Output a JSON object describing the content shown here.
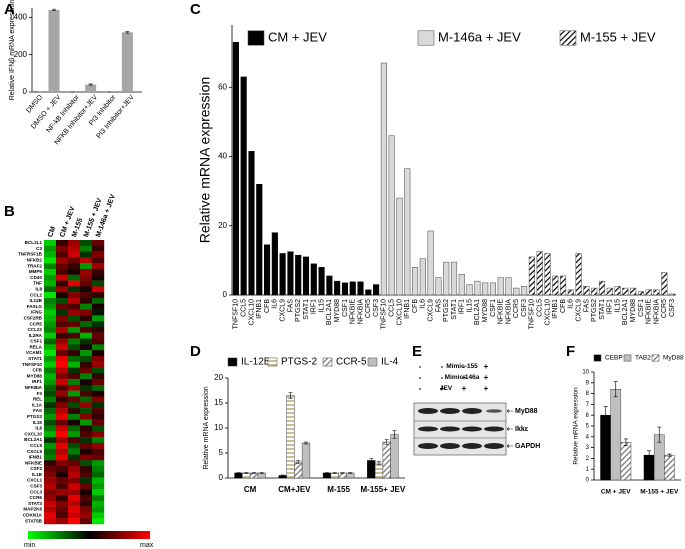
{
  "chart_data": [
    {
      "panel": "A",
      "type": "bar",
      "ylabel": "Relative IFNβ mRNA expression",
      "categories": [
        "DMSO",
        "DMSO + JEV",
        "NF-kB Inhibitor",
        "NFKB Inhibitor+JEV",
        "PI3 Inhibitor",
        "PI3 Inhibitor+JEV"
      ],
      "values": [
        1,
        440,
        1,
        40,
        1,
        320
      ],
      "errors": [
        0,
        4,
        0,
        3,
        0,
        4
      ],
      "color": "#a6a6a6",
      "ylim": [
        0,
        450
      ],
      "yticks": [
        0,
        200,
        400
      ]
    },
    {
      "panel": "B",
      "type": "heatmap",
      "columns": [
        "CM",
        "CM + JEV",
        "M-155",
        "M-155 + JEV",
        "M-146a + JEV"
      ],
      "rows": [
        "BCL2L1",
        "C3",
        "TNFRSF1B",
        "NFKB2",
        "TRAF2",
        "MMP9",
        "CD40",
        "TNF",
        "IL8",
        "CCL2",
        "IL12B",
        "FASLG",
        "IFNG",
        "CSF2RB",
        "CCR5",
        "CCL22",
        "IL2RA",
        "CSF1",
        "RELA",
        "VCAM1",
        "STAT1",
        "TNFSF10",
        "CFB",
        "MYD88",
        "IRF1",
        "NFKBIA",
        "F3",
        "REL",
        "IL1A",
        "FAS",
        "PTGS2",
        "IL15",
        "IL6",
        "CXCL10",
        "BCL2A1",
        "CCL5",
        "CXCL9",
        "IFNB1",
        "NFKBIE",
        "CSF2",
        "IL1B",
        "CXCL1",
        "CSF3",
        "CCL3",
        "CCR6",
        "STAT3",
        "MAP2K6",
        "CDKN1A",
        "STAT5B"
      ],
      "values": [
        [
          -0.8,
          0.2,
          0.6,
          -0.3,
          0.4
        ],
        [
          -0.6,
          0.5,
          0.7,
          -0.5,
          0.2
        ],
        [
          -0.7,
          0.3,
          0.8,
          -0.2,
          0.5
        ],
        [
          -0.9,
          0.6,
          0.4,
          0.7,
          0.3
        ],
        [
          -0.5,
          0.4,
          0.2,
          -0.6,
          0.6
        ],
        [
          -0.8,
          0.3,
          0.1,
          0.6,
          0.2
        ],
        [
          -0.6,
          0.8,
          -0.4,
          0.5,
          0.1
        ],
        [
          -0.7,
          0.2,
          0.9,
          0.4,
          -0.3
        ],
        [
          -0.4,
          0.6,
          -0.2,
          0.1,
          0.8
        ],
        [
          -0.9,
          0.1,
          0.5,
          0.3,
          0.2
        ],
        [
          -0.5,
          -0.3,
          0.7,
          0.2,
          -0.4
        ],
        [
          -0.6,
          0.4,
          0.3,
          -0.5,
          0.1
        ],
        [
          -0.8,
          -0.2,
          0.6,
          0.5,
          -0.1
        ],
        [
          -0.7,
          0.5,
          -0.3,
          0.2,
          -0.6
        ],
        [
          -0.6,
          0.3,
          0.4,
          -0.4,
          -0.2
        ],
        [
          -0.5,
          0.7,
          -0.6,
          0.3,
          0.2
        ],
        [
          -0.8,
          0.2,
          0.3,
          -0.7,
          0.4
        ],
        [
          -0.4,
          0.6,
          -0.5,
          -0.2,
          0.3
        ],
        [
          -0.7,
          0.8,
          -0.3,
          0.1,
          -0.5
        ],
        [
          -0.9,
          0.4,
          0.2,
          -0.6,
          0.1
        ],
        [
          -0.6,
          0.9,
          -0.4,
          -0.3,
          0.5
        ],
        [
          -0.8,
          1,
          -0.7,
          0.2,
          0.6
        ],
        [
          -0.5,
          0.7,
          -0.2,
          0.4,
          -0.3
        ],
        [
          -0.7,
          0.5,
          0.3,
          -0.5,
          0.2
        ],
        [
          -0.6,
          0.8,
          -0.5,
          0.1,
          0.4
        ],
        [
          -0.4,
          0.3,
          0.6,
          -0.2,
          -0.4
        ],
        [
          -0.3,
          0.6,
          -0.6,
          0.3,
          0.1
        ],
        [
          -0.5,
          0.2,
          0.4,
          -0.4,
          0.5
        ],
        [
          -0.2,
          0.5,
          -0.3,
          0.6,
          -0.2
        ],
        [
          -0.4,
          0.7,
          0.2,
          -0.3,
          0.3
        ],
        [
          -0.6,
          0.9,
          -0.5,
          0.5,
          0.2
        ],
        [
          -0.3,
          0.4,
          0.1,
          -0.6,
          0.4
        ],
        [
          -0.5,
          0.8,
          -0.4,
          0.2,
          -0.3
        ],
        [
          -0.7,
          1,
          -0.6,
          0.3,
          0.5
        ],
        [
          -0.2,
          0.6,
          0.3,
          -0.2,
          -0.5
        ],
        [
          -0.6,
          0.9,
          -0.3,
          0.4,
          0.6
        ],
        [
          -0.4,
          0.7,
          -0.5,
          0.1,
          0.3
        ],
        [
          -0.5,
          0.9,
          -0.2,
          0.5,
          0.4
        ],
        [
          0.2,
          0.5,
          0.4,
          -0.3,
          -0.6
        ],
        [
          0.4,
          0.3,
          0.6,
          0.2,
          -0.5
        ],
        [
          0.5,
          0.1,
          0.7,
          0.3,
          -0.4
        ],
        [
          0.6,
          0.4,
          0.5,
          -0.2,
          -0.7
        ],
        [
          0.7,
          0.3,
          0.8,
          0.4,
          -0.6
        ],
        [
          0.5,
          0.6,
          0.6,
          0.1,
          -0.8
        ],
        [
          0.6,
          0.2,
          0.9,
          0.3,
          -0.5
        ],
        [
          0.8,
          0.5,
          0.7,
          0.2,
          -0.7
        ],
        [
          0.7,
          0.4,
          0.9,
          0.5,
          -0.6
        ],
        [
          0.9,
          0.3,
          0.8,
          0.6,
          -0.8
        ],
        [
          0.8,
          0.6,
          1,
          0.4,
          -0.9
        ]
      ],
      "vlim": [
        -1,
        1
      ],
      "colors": [
        "#00ff00",
        "#000000",
        "#ff0000"
      ],
      "colorbar_labels": [
        "min",
        "max"
      ]
    },
    {
      "panel": "C",
      "type": "grouped_bar",
      "grouping": "by_series",
      "ylabel": "Relative mRNA expression",
      "categories": [
        "TNFSF10",
        "CCL5",
        "CXCL10",
        "IFNB1",
        "CFB",
        "IL6",
        "CXCL9",
        "FAS",
        "PTGS2",
        "STAT1",
        "IRF1",
        "IL15",
        "BCL2A1",
        "MYD88",
        "CSF1",
        "NFKBIE",
        "NFKBIA",
        "CCR5",
        "CSF3"
      ],
      "series": [
        {
          "name": "CM + JEV",
          "color": "#000000",
          "values": [
            73,
            63,
            41.5,
            32,
            14.5,
            18,
            12,
            12.5,
            11.5,
            11,
            9,
            8,
            5.5,
            4,
            3.5,
            3.8,
            3.8,
            1.5,
            3
          ]
        },
        {
          "name": "M-146a + JEV",
          "color": "#d9d9d9",
          "values": [
            67,
            46,
            28,
            36.5,
            8,
            10.5,
            18.5,
            5,
            9.5,
            9.5,
            6,
            3,
            4,
            3.5,
            3.5,
            5,
            5,
            2,
            2.5
          ]
        },
        {
          "name": "M-155 + JEV",
          "color": "#000000",
          "pattern": "diagonal",
          "values": [
            11,
            12.5,
            12,
            5.5,
            5.5,
            1.5,
            12,
            2.5,
            2,
            4,
            2,
            2.5,
            2,
            2,
            1,
            1.5,
            1.5,
            6.5,
            0.3
          ]
        }
      ],
      "ylim": [
        0,
        78
      ],
      "yticks": [
        0,
        20,
        40,
        60
      ]
    },
    {
      "panel": "D",
      "type": "grouped_bar",
      "grouping": "by_category",
      "ylabel": "Relative mRNA expression",
      "categories": [
        "CM",
        "CM+JEV",
        "M-155",
        "M-155+ JEV"
      ],
      "series": [
        {
          "name": "IL-12B",
          "color": "#000000",
          "values": [
            1,
            0.5,
            1,
            3.5
          ],
          "errors": [
            0.1,
            0.1,
            0.1,
            0.4
          ]
        },
        {
          "name": "PTGS-2",
          "color": "#c8bf95",
          "pattern": "horizontal",
          "values": [
            1,
            16.5,
            1,
            3
          ],
          "errors": [
            0.1,
            0.6,
            0.1,
            0.3
          ]
        },
        {
          "name": "CCR-5",
          "color": "#707070",
          "pattern": "diagonal",
          "values": [
            1,
            3.2,
            1,
            7.2
          ],
          "errors": [
            0.1,
            0.3,
            0.1,
            0.5
          ]
        },
        {
          "name": "IL-4",
          "color": "#bfbfbf",
          "values": [
            1,
            7,
            1,
            8.7
          ],
          "errors": [
            0.1,
            0.2,
            0.1,
            0.8
          ]
        }
      ],
      "ylim": [
        0,
        20
      ],
      "yticks": [
        0,
        5,
        10,
        15,
        20
      ]
    },
    {
      "panel": "F",
      "type": "grouped_bar",
      "grouping": "by_category",
      "ylabel": "Relative mRNA expression",
      "categories": [
        "CM + JEV",
        "M-155 + JEV"
      ],
      "series": [
        {
          "name": "CEBP",
          "color": "#000000",
          "values": [
            6,
            2.3
          ],
          "errors": [
            0.8,
            0.4
          ]
        },
        {
          "name": "TAB2",
          "color": "#bfbfbf",
          "values": [
            8.4,
            4.2
          ],
          "errors": [
            0.7,
            0.7
          ]
        },
        {
          "name": "MyD88",
          "color": "#707070",
          "pattern": "diagonal",
          "values": [
            3.5,
            2.3
          ],
          "errors": [
            0.3,
            0.1
          ]
        }
      ],
      "ylim": [
        0,
        10
      ],
      "yticks": [
        0,
        1,
        2,
        3,
        4,
        5,
        6,
        7,
        8,
        9,
        10
      ]
    }
  ],
  "blot": {
    "panel": "E",
    "treatments": [
      {
        "label": "Mimic-155",
        "signs": [
          "-",
          "-",
          "-",
          "+"
        ]
      },
      {
        "label": "Mimic 146a",
        "signs": [
          "-",
          "-",
          "+",
          "+"
        ]
      },
      {
        "label": "JEV",
        "signs": [
          "-",
          "+",
          "+",
          "+"
        ]
      }
    ],
    "bands": [
      "MyD88",
      "Ikkε",
      "GAPDH"
    ]
  }
}
